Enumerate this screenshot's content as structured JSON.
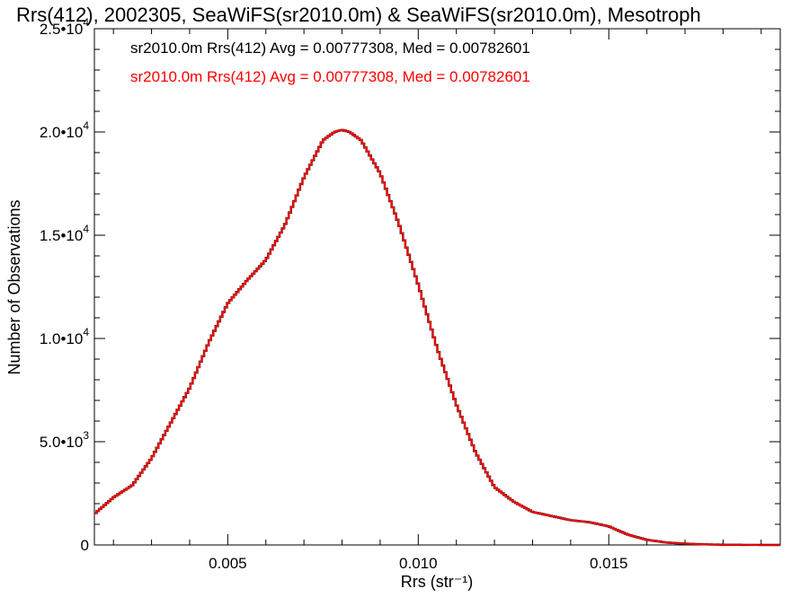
{
  "chart_data": {
    "type": "histogram",
    "title": "Rrs(412), 2002305, SeaWiFS(sr2010.0m) & SeaWiFS(sr2010.0m), Mesotroph",
    "xlabel": "Rrs (str⁻¹)",
    "ylabel": "Number of Observations",
    "xlim": [
      0.0015,
      0.0195
    ],
    "ylim": [
      0,
      25000
    ],
    "grid": false,
    "x_ticks": [
      {
        "value": 0.005,
        "label": "0.005"
      },
      {
        "value": 0.01,
        "label": "0.010"
      },
      {
        "value": 0.015,
        "label": "0.015"
      }
    ],
    "y_ticks": [
      {
        "value": 0,
        "mantissa": "0",
        "exp": ""
      },
      {
        "value": 5000,
        "mantissa": "5.0•10",
        "exp": "3"
      },
      {
        "value": 10000,
        "mantissa": "1.0•10",
        "exp": "4"
      },
      {
        "value": 15000,
        "mantissa": "1.5•10",
        "exp": "4"
      },
      {
        "value": 20000,
        "mantissa": "2.0•10",
        "exp": "4"
      },
      {
        "value": 25000,
        "mantissa": "2.5•10",
        "exp": "4"
      }
    ],
    "annotations": [
      {
        "text": "sr2010.0m Rrs(412) Avg = 0.00777308, Med = 0.00782601",
        "color": "#000000"
      },
      {
        "text": "sr2010.0m Rrs(412) Avg = 0.00777308, Med = 0.00782601",
        "color": "#ff0000"
      }
    ],
    "series": [
      {
        "color": "#000000"
      },
      {
        "color": "#ff0000"
      }
    ],
    "x": [
      0.0015,
      0.002,
      0.0025,
      0.003,
      0.0035,
      0.004,
      0.0045,
      0.005,
      0.0055,
      0.006,
      0.0065,
      0.007,
      0.0075,
      0.0078,
      0.008,
      0.0082,
      0.0085,
      0.009,
      0.0095,
      0.01,
      0.0105,
      0.011,
      0.0115,
      0.012,
      0.0125,
      0.013,
      0.0135,
      0.014,
      0.0145,
      0.015,
      0.0155,
      0.016,
      0.0165,
      0.017,
      0.0175,
      0.018,
      0.0185,
      0.019,
      0.0195
    ],
    "y": [
      1500,
      2300,
      2900,
      4200,
      5900,
      7600,
      9800,
      11700,
      12800,
      13800,
      15500,
      17800,
      19600,
      20000,
      20100,
      20000,
      19600,
      18000,
      15500,
      12600,
      9500,
      6800,
      4500,
      2800,
      2100,
      1600,
      1400,
      1200,
      1100,
      900,
      500,
      250,
      120,
      60,
      30,
      10,
      5,
      0,
      0
    ]
  }
}
